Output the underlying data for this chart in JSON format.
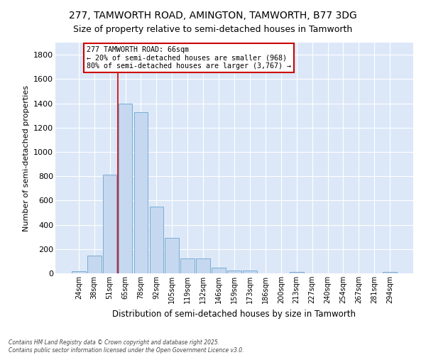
{
  "title1": "277, TAMWORTH ROAD, AMINGTON, TAMWORTH, B77 3DG",
  "title2": "Size of property relative to semi-detached houses in Tamworth",
  "xlabel": "Distribution of semi-detached houses by size in Tamworth",
  "ylabel": "Number of semi-detached properties",
  "categories": [
    "24sqm",
    "38sqm",
    "51sqm",
    "65sqm",
    "78sqm",
    "92sqm",
    "105sqm",
    "119sqm",
    "132sqm",
    "146sqm",
    "159sqm",
    "173sqm",
    "186sqm",
    "200sqm",
    "213sqm",
    "227sqm",
    "240sqm",
    "254sqm",
    "267sqm",
    "281sqm",
    "294sqm"
  ],
  "values": [
    20,
    145,
    810,
    1400,
    1330,
    550,
    295,
    120,
    120,
    48,
    25,
    25,
    0,
    0,
    10,
    0,
    0,
    0,
    0,
    0,
    12
  ],
  "bar_color": "#c5d8f0",
  "bar_edge_color": "#7aadd4",
  "vline_color": "#cc0000",
  "vline_x_index": 3,
  "annotation_text": "277 TAMWORTH ROAD: 66sqm\n← 20% of semi-detached houses are smaller (968)\n80% of semi-detached houses are larger (3,767) →",
  "annotation_box_color": "white",
  "annotation_border_color": "#cc0000",
  "ylim": [
    0,
    1900
  ],
  "yticks": [
    0,
    200,
    400,
    600,
    800,
    1000,
    1200,
    1400,
    1600,
    1800
  ],
  "background_color": "#dce8f8",
  "grid_color": "#ffffff",
  "footnote": "Contains HM Land Registry data © Crown copyright and database right 2025.\nContains public sector information licensed under the Open Government Licence v3.0.",
  "title1_fontsize": 10,
  "title2_fontsize": 9,
  "fig_width": 6.0,
  "fig_height": 5.0
}
